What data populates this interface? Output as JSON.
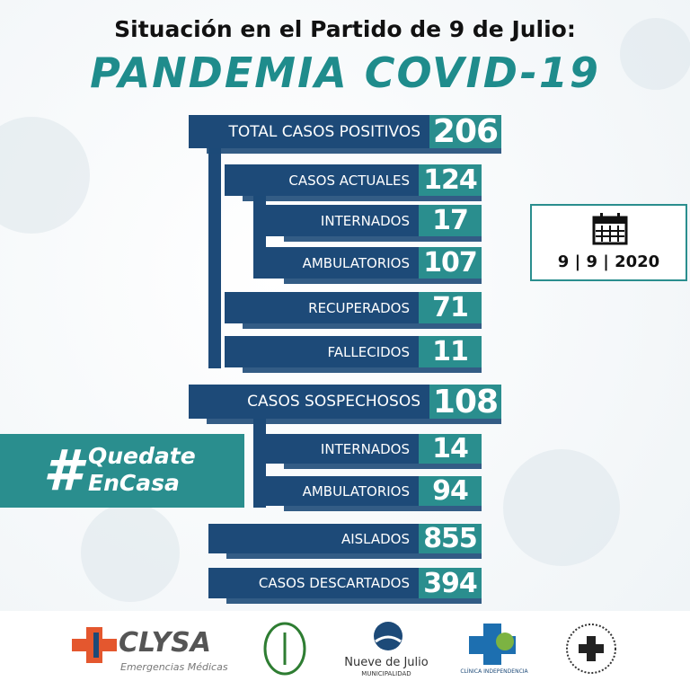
{
  "header": {
    "title": "Situación en el Partido de 9 de Julio:",
    "subtitle": "PANDEMIA COVID-19"
  },
  "rows": [
    {
      "label": "TOTAL CASOS POSITIVOS",
      "value": 206
    },
    {
      "label": "CASOS ACTUALES",
      "value": 124
    },
    {
      "label": "INTERNADOS",
      "value": 17
    },
    {
      "label": "AMBULATORIOS",
      "value": 107
    },
    {
      "label": "RECUPERADOS",
      "value": 71
    },
    {
      "label": "FALLECIDOS",
      "value": 11
    },
    {
      "label": "CASOS SOSPECHOSOS",
      "value": 108
    },
    {
      "label": "INTERNADOS",
      "value": 14
    },
    {
      "label": "AMBULATORIOS",
      "value": 94
    },
    {
      "label": "AISLADOS",
      "value": 855
    },
    {
      "label": "CASOS DESCARTADOS",
      "value": 394
    }
  ],
  "date": {
    "day": 9,
    "month": 9,
    "year": 2020
  },
  "hashtag": {
    "symbol": "#",
    "line1": "Quedate",
    "line2": "EnCasa"
  },
  "logos": {
    "clysa": "CLYSA",
    "clysa_sub": "Emergencias Médicas",
    "municipio": "Nueve de Julio",
    "municipio_sub": "MUNICIPALIDAD",
    "clinica": "CLÍNICA INDEPENDENCIA"
  }
}
